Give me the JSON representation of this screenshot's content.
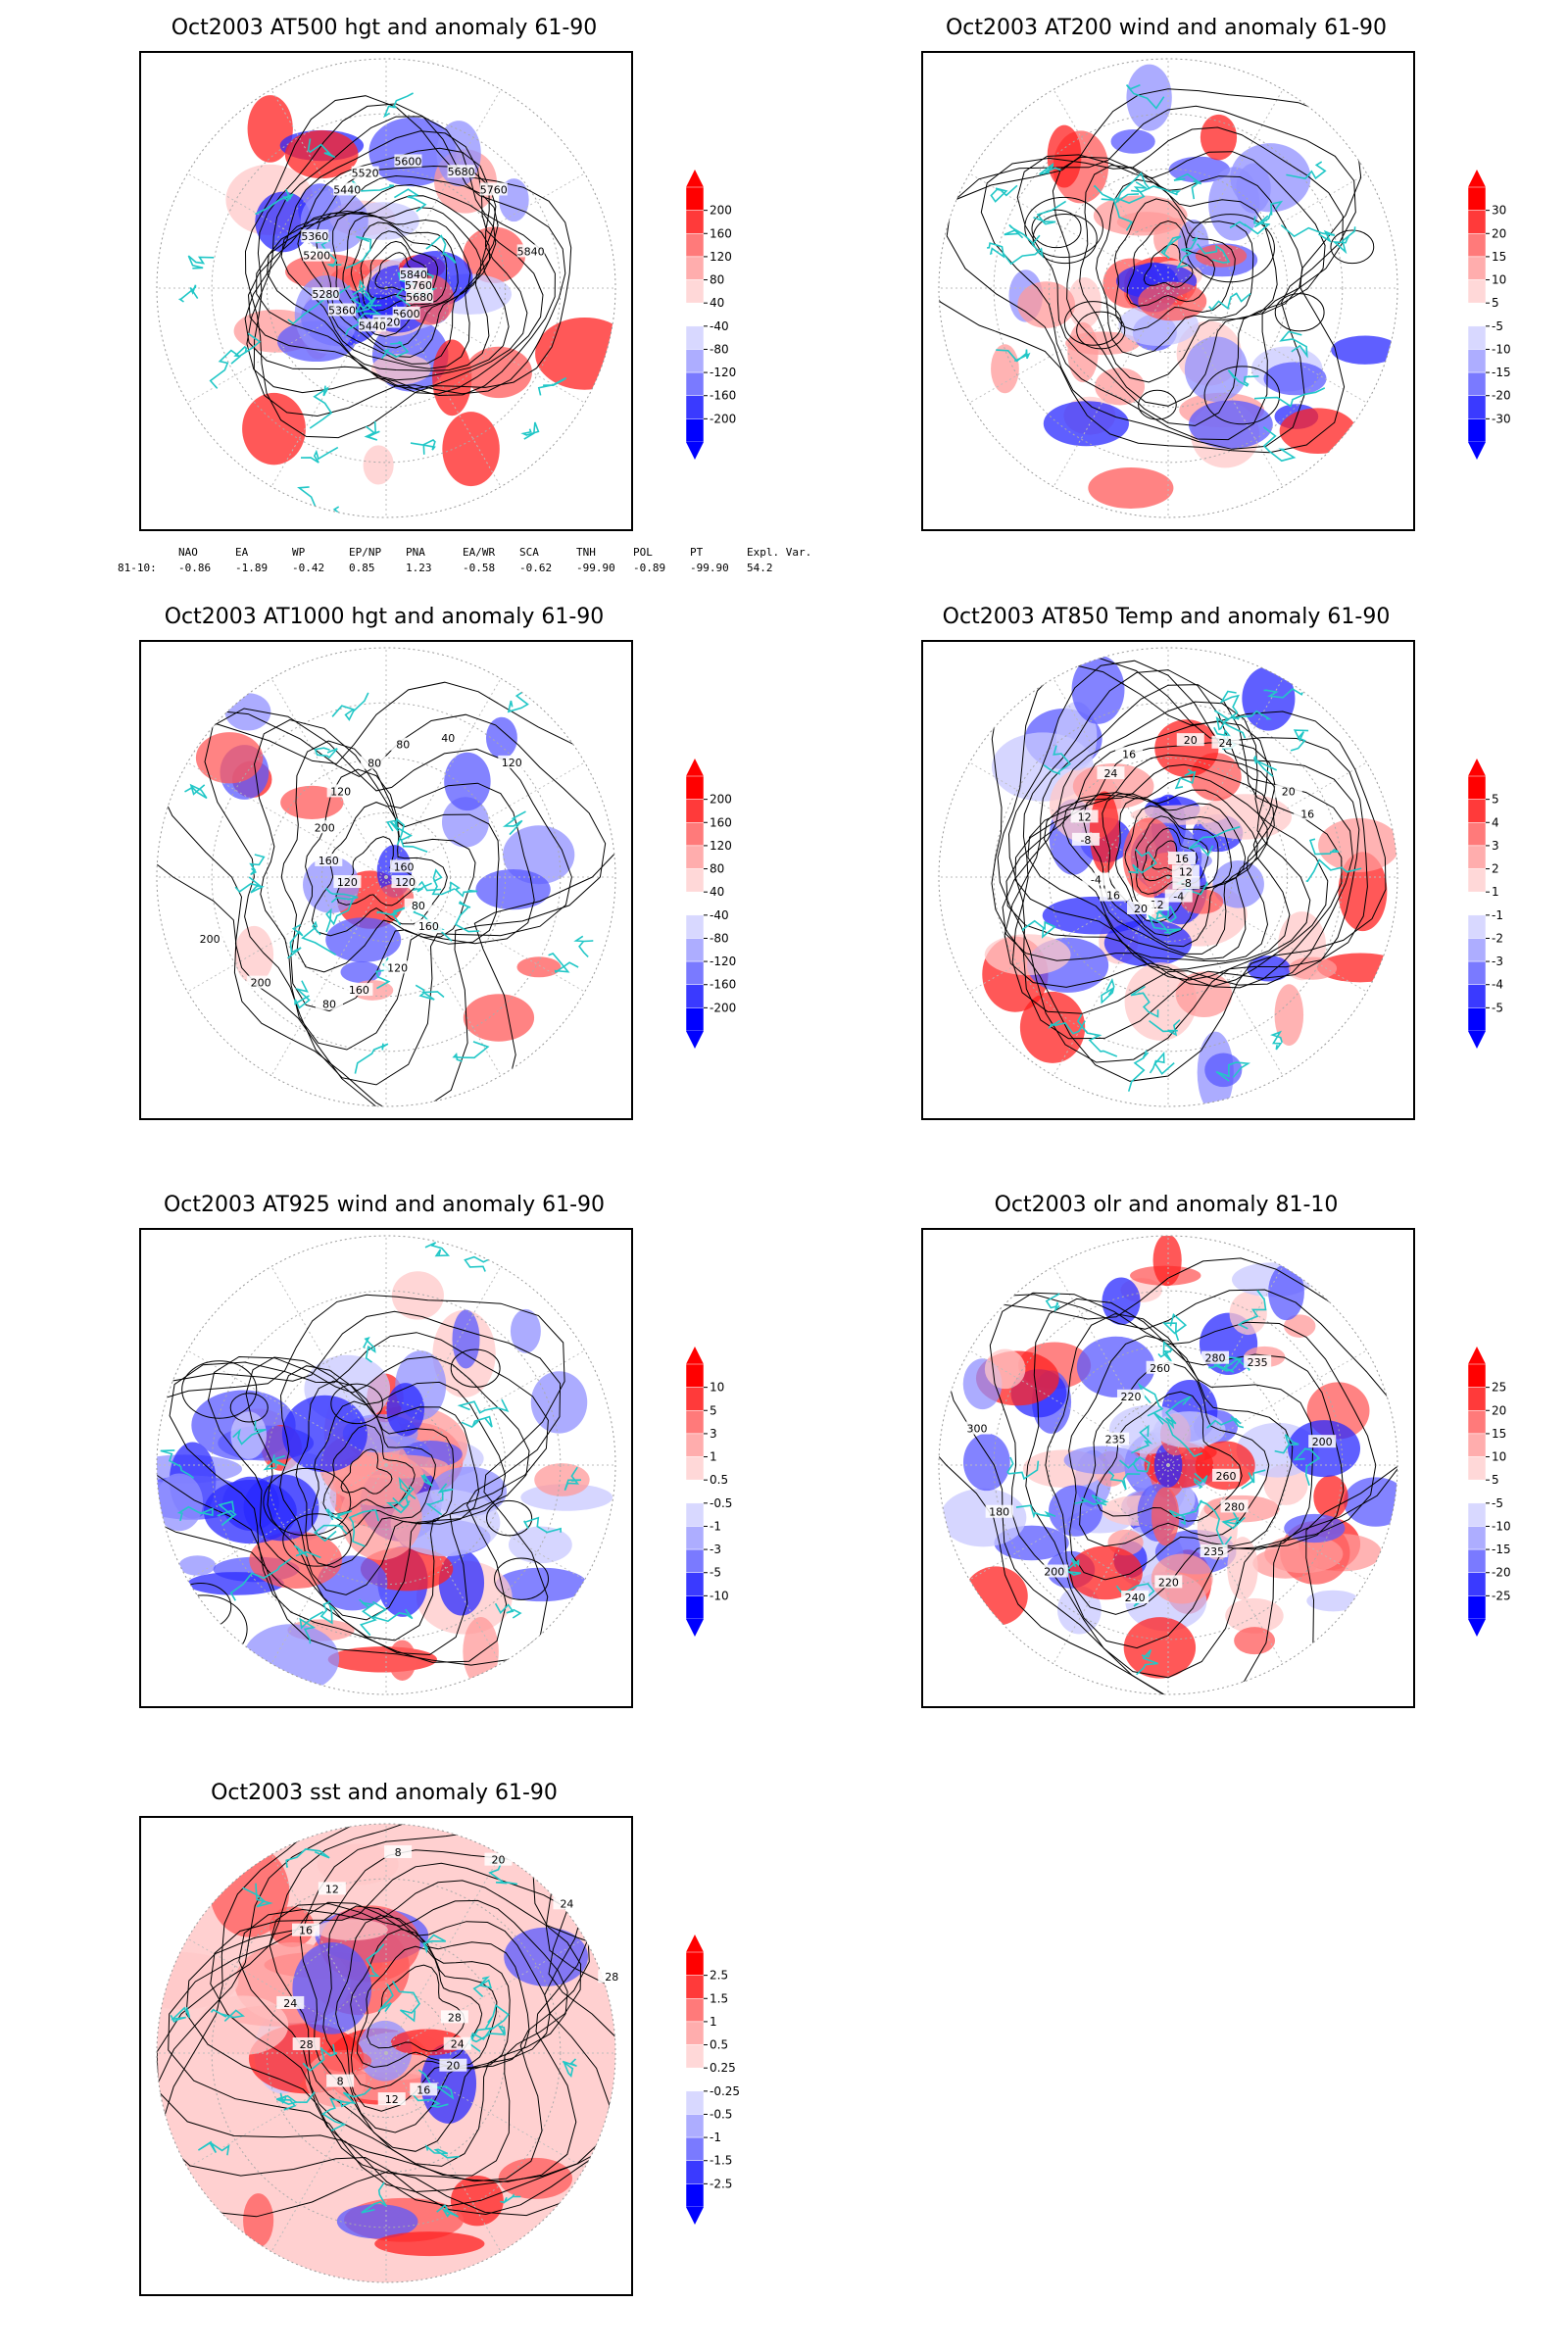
{
  "panels": [
    {
      "id": "p500",
      "title": "Oct2003 AT500 hgt and anomaly 61-90",
      "colorbar": [
        "200",
        "160",
        "120",
        "80",
        "40",
        "-40",
        "-80",
        "-120",
        "-160",
        "-200"
      ],
      "contour_labels": [
        "5840",
        "5760",
        "5680",
        "5600",
        "5520",
        "5440",
        "5360",
        "5280",
        "5200",
        "5360",
        "5440",
        "5520",
        "5600",
        "5680",
        "5760",
        "5840"
      ]
    },
    {
      "id": "p200",
      "title": "Oct2003 AT200 wind and anomaly 61-90",
      "colorbar": [
        "30",
        "20",
        "15",
        "10",
        "5",
        "-5",
        "-10",
        "-15",
        "-20",
        "-30"
      ],
      "contour_labels": []
    },
    {
      "id": "p1000",
      "title": "Oct2003 AT1000 hgt and anomaly 61-90",
      "colorbar": [
        "200",
        "160",
        "120",
        "80",
        "40",
        "-40",
        "-80",
        "-120",
        "-160",
        "-200"
      ],
      "contour_labels": [
        "120",
        "80",
        "160",
        "120",
        "160",
        "80",
        "200",
        "200",
        "120",
        "160",
        "200",
        "120",
        "80",
        "80",
        "40",
        "120",
        "160"
      ]
    },
    {
      "id": "p850",
      "title": "Oct2003 AT850 Temp and anomaly 61-90",
      "colorbar": [
        "5",
        "4",
        "3",
        "2",
        "1",
        "-1",
        "-2",
        "-3",
        "-4",
        "-5"
      ],
      "contour_labels": [
        "16",
        "12",
        "-8",
        "-4",
        "-12",
        "20",
        "16",
        "-4",
        "-8",
        "12",
        "24",
        "16",
        "20",
        "24",
        "20",
        "16"
      ]
    },
    {
      "id": "p925",
      "title": "Oct2003 AT925 wind and anomaly 61-90",
      "colorbar": [
        "10",
        "5",
        "3",
        "1",
        "0.5",
        "-0.5",
        "-1",
        "-3",
        "-5",
        "-10"
      ],
      "contour_labels": []
    },
    {
      "id": "polr",
      "title": "Oct2003 olr and anomaly 81-10",
      "colorbar": [
        "25",
        "20",
        "15",
        "10",
        "5",
        "-5",
        "-10",
        "-15",
        "-20",
        "-25"
      ],
      "contour_labels": [
        "260",
        "280",
        "235",
        "220",
        "240",
        "200",
        "180",
        "300",
        "235",
        "220",
        "260",
        "280",
        "235",
        "200"
      ]
    },
    {
      "id": "psst",
      "title": "Oct2003 sst and anomaly 61-90",
      "colorbar": [
        "2.5",
        "1.5",
        "1",
        "0.5",
        "0.25",
        "-0.25",
        "-0.5",
        "-1",
        "-1.5",
        "-2.5"
      ],
      "contour_labels": [
        "28",
        "24",
        "20",
        "16",
        "12",
        "8",
        "28",
        "24",
        "16",
        "12",
        "8",
        "20",
        "24",
        "28"
      ]
    }
  ],
  "indices": {
    "headers": [
      "NAO",
      "EA",
      "WP",
      "EP/NP",
      "PNA",
      "EA/WR",
      "SCA",
      "TNH",
      "POL",
      "PT",
      "Expl. Var."
    ],
    "row_label": "81-10:",
    "values": [
      "-0.86",
      "-1.89",
      "-0.42",
      "0.85",
      "1.23",
      "-0.58",
      "-0.62",
      "-99.90",
      "-0.89",
      "-99.90",
      "54.2"
    ]
  },
  "colors": {
    "land_outline": "#22c7c7",
    "contour": "#000000",
    "positive_strong": "#ff0000",
    "negative_strong": "#0000ff"
  }
}
